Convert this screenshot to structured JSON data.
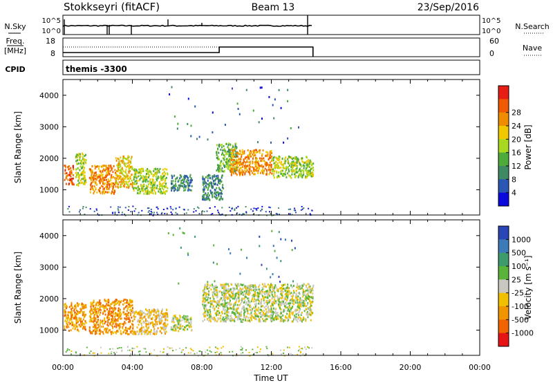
{
  "header": {
    "station": "Stokkseyri (fitACF)",
    "beam": "Beam 13",
    "date": "23/Sep/2016"
  },
  "strip_labels": {
    "nsky": "N.Sky",
    "nsearch": "N.Search",
    "freq_line1": "Freq.",
    "freq_line2": "[MHz]",
    "nave": "Nave",
    "cpid": "CPID",
    "cpid_value": "themis -3300"
  },
  "noise_strip": {
    "left_ticks": [
      {
        "value": "10^5"
      },
      {
        "value": "10^0"
      }
    ],
    "right_ticks": [
      {
        "value": "10^5"
      },
      {
        "value": "10^0"
      }
    ],
    "data_end_hour": 14.4
  },
  "freq_strip": {
    "left_ticks": [
      "18",
      "8"
    ],
    "right_ticks": [
      "60",
      "0"
    ],
    "nave_step_hour": 9.0,
    "data_end_hour": 14.4
  },
  "colors": {
    "power_scale": [
      "#0a0adc",
      "#2a56b4",
      "#3f8a64",
      "#4faa3c",
      "#a8d820",
      "#f0c800",
      "#f08c00",
      "#f05a00",
      "#e61e14"
    ],
    "velocity_scale": [
      "#2a46b4",
      "#3d7ab8",
      "#3f9a6c",
      "#5ab43c",
      "#c8c8c0",
      "#f0c000",
      "#f09400",
      "#f06400",
      "#e61414"
    ]
  },
  "chart_data": [
    {
      "type": "heatmap",
      "name": "power",
      "xlabel": "",
      "ylabel": "Slant Range [km]",
      "xlim": [
        0,
        24
      ],
      "ylim": [
        200,
        4500
      ],
      "yticks": [
        "1000",
        "2000",
        "3000",
        "4000"
      ],
      "colorbar_label": "Power [dB]",
      "colorbar_ticks": [
        "4",
        "8",
        "12",
        "16",
        "20",
        "24",
        "28"
      ],
      "patches": [
        {
          "x": [
            0.05,
            0.6
          ],
          "y": [
            1200,
            1800
          ],
          "level": 7
        },
        {
          "x": [
            0.7,
            1.3
          ],
          "y": [
            1100,
            2200
          ],
          "level": 4
        },
        {
          "x": [
            1.5,
            3.0
          ],
          "y": [
            900,
            1800
          ],
          "level": 6
        },
        {
          "x": [
            3.0,
            4.0
          ],
          "y": [
            1100,
            2100
          ],
          "level": 5
        },
        {
          "x": [
            4.0,
            6.0
          ],
          "y": [
            900,
            1700
          ],
          "level": 4
        },
        {
          "x": [
            6.2,
            7.4
          ],
          "y": [
            1000,
            1500
          ],
          "level": 2
        },
        {
          "x": [
            8.0,
            9.2
          ],
          "y": [
            700,
            1500
          ],
          "level": 2
        },
        {
          "x": [
            8.8,
            10.0
          ],
          "y": [
            1600,
            2500
          ],
          "level": 3
        },
        {
          "x": [
            9.6,
            12.0
          ],
          "y": [
            1500,
            2300
          ],
          "level": 6
        },
        {
          "x": [
            12.0,
            14.4
          ],
          "y": [
            1400,
            2100
          ],
          "level": 4
        }
      ]
    },
    {
      "type": "heatmap",
      "name": "velocity",
      "xlabel": "Time UT",
      "ylabel": "Slant Range [km]",
      "xlim": [
        0,
        24
      ],
      "ylim": [
        200,
        4500
      ],
      "xticks": [
        "00:00",
        "04:00",
        "08:00",
        "12:00",
        "16:00",
        "20:00",
        "00:00"
      ],
      "yticks": [
        "1000",
        "2000",
        "3000",
        "4000"
      ],
      "colorbar_label": "Velocity [m s⁻¹]",
      "colorbar_ticks": [
        "1000",
        "500",
        "100",
        "25",
        "-25",
        "-100",
        "-500",
        "-1000"
      ],
      "patches": [
        {
          "x": [
            0.05,
            1.3
          ],
          "y": [
            1000,
            1900
          ],
          "level": 6
        },
        {
          "x": [
            1.5,
            4.0
          ],
          "y": [
            900,
            2000
          ],
          "level": 6
        },
        {
          "x": [
            4.0,
            6.0
          ],
          "y": [
            900,
            1700
          ],
          "level": 5
        },
        {
          "x": [
            6.2,
            7.4
          ],
          "y": [
            1000,
            1500
          ],
          "level": 4
        },
        {
          "x": [
            8.0,
            14.4
          ],
          "y": [
            1300,
            2500
          ],
          "level": 4
        }
      ]
    }
  ]
}
